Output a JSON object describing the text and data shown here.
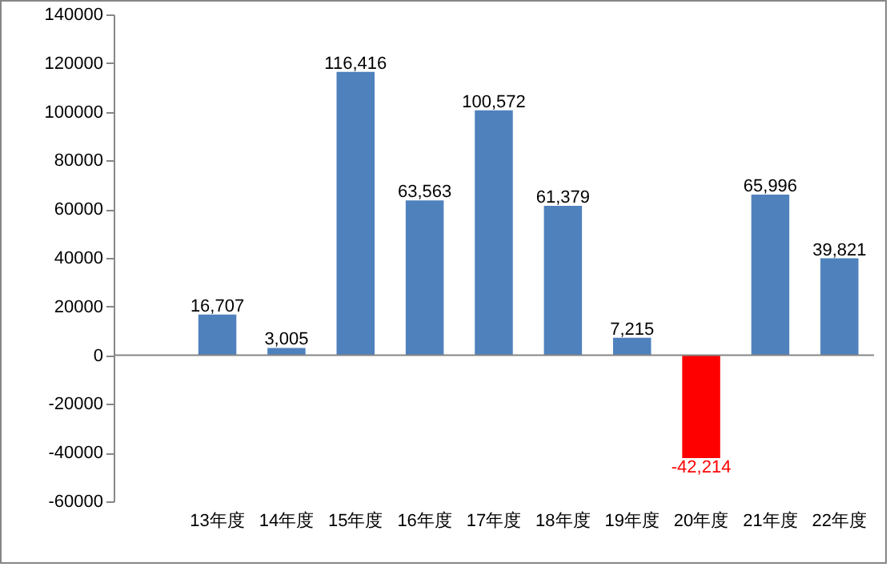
{
  "chart_data": {
    "type": "bar",
    "categories": [
      null,
      "13年度",
      "14年度",
      "15年度",
      "16年度",
      "17年度",
      "18年度",
      "19年度",
      "20年度",
      "21年度",
      "22年度"
    ],
    "values": [
      null,
      16707,
      3005,
      116416,
      63563,
      100572,
      61379,
      7215,
      -42214,
      65996,
      39821
    ],
    "value_labels": [
      null,
      "16,707",
      "3,005",
      "116,416",
      "63,563",
      "100,572",
      "61,379",
      "7,215",
      "-42,214",
      "65,996",
      "39,821"
    ],
    "colors": [
      "#4f81bd",
      "#4f81bd",
      "#4f81bd",
      "#4f81bd",
      "#4f81bd",
      "#4f81bd",
      "#4f81bd",
      "#4f81bd",
      "#ff0000",
      "#4f81bd",
      "#4f81bd"
    ],
    "ylim": [
      -60000,
      140000
    ],
    "yticks": [
      -60000,
      -40000,
      -20000,
      0,
      20000,
      40000,
      60000,
      80000,
      100000,
      120000,
      140000
    ],
    "ref_lines": [
      {
        "axis": "y",
        "value": 0,
        "color": "#868686"
      }
    ],
    "grid": false
  }
}
